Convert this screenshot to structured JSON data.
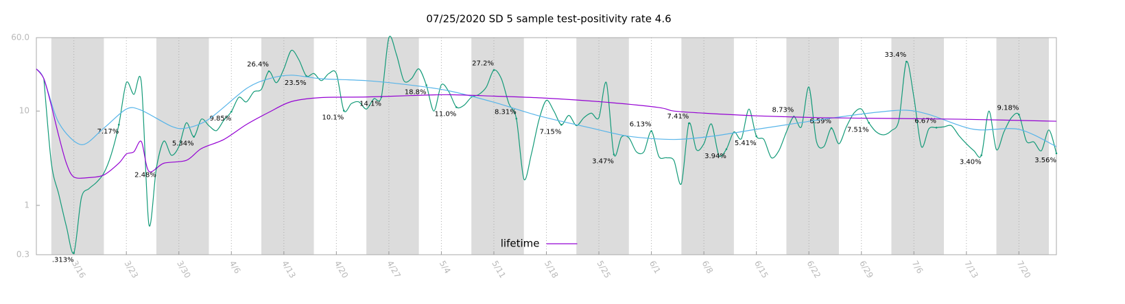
{
  "chart_data": {
    "type": "line",
    "title": "07/25/2020 SD 5 sample test-positivity rate 4.6",
    "log_y": true,
    "grid": "x",
    "legend": "bottom",
    "xlim": [
      "3/11",
      "7/25"
    ],
    "xticks": [
      "3/16",
      "3/23",
      "3/30",
      "4/6",
      "4/13",
      "4/20",
      "4/27",
      "5/4",
      "5/11",
      "5/18",
      "5/25",
      "6/1",
      "6/8",
      "6/15",
      "6/22",
      "6/29",
      "7/6",
      "7/13",
      "7/20"
    ],
    "ylim": [
      0.3,
      60
    ],
    "yticks": [
      0.3,
      1,
      10,
      {
        "value": 60,
        "label": "60.0"
      }
    ],
    "series": [
      {
        "color": "#129a78",
        "x": [
          "3/12",
          "3/13",
          "3/14",
          "3/15",
          "3/16",
          "3/17",
          "3/18",
          "3/19",
          "3/20",
          "3/21",
          "3/22",
          "3/23",
          "3/24",
          "3/25",
          "3/26",
          "3/27",
          "3/28",
          "3/29",
          "3/30",
          "3/31",
          "4/1",
          "4/2",
          "4/3",
          "4/4",
          "4/5",
          "4/6",
          "4/7",
          "4/8",
          "4/9",
          "4/10",
          "4/11",
          "4/12",
          "4/13",
          "4/14",
          "4/15",
          "4/16",
          "4/17",
          "4/18",
          "4/19",
          "4/20",
          "4/21",
          "4/22",
          "4/23",
          "4/24",
          "4/25",
          "4/26",
          "4/27",
          "4/28",
          "4/29",
          "4/30",
          "5/1",
          "5/2",
          "5/3",
          "5/4",
          "5/5",
          "5/6",
          "5/7",
          "5/8",
          "5/9",
          "5/10",
          "5/11",
          "5/12",
          "5/13",
          "5/14",
          "5/15",
          "5/16",
          "5/17",
          "5/18",
          "5/19",
          "5/20",
          "5/21",
          "5/22",
          "5/23",
          "5/24",
          "5/25",
          "5/26",
          "5/27",
          "5/28",
          "5/29",
          "5/30",
          "5/31",
          "6/1",
          "6/2",
          "6/3",
          "6/4",
          "6/5",
          "6/6",
          "6/7",
          "6/8",
          "6/9",
          "6/10",
          "6/11",
          "6/12",
          "6/13",
          "6/14",
          "6/15",
          "6/16",
          "6/17",
          "6/18",
          "6/19",
          "6/20",
          "6/21",
          "6/22",
          "6/23",
          "6/24",
          "6/25",
          "6/26",
          "6/27",
          "6/28",
          "6/29",
          "6/30",
          "7/1",
          "7/2",
          "7/3",
          "7/4",
          "7/5",
          "7/6",
          "7/7",
          "7/8",
          "7/9",
          "7/10",
          "7/11",
          "7/12",
          "7/13",
          "7/14",
          "7/15",
          "7/16",
          "7/17",
          "7/18",
          "7/19",
          "7/20",
          "7/21",
          "7/22",
          "7/23",
          "7/24",
          "7/25"
        ],
        "values": [
          22,
          2.8,
          1.3,
          0.6,
          0.313,
          1.2,
          1.5,
          1.75,
          2.2,
          3.5,
          7.17,
          20,
          15,
          20,
          0.63,
          2.48,
          4.8,
          3.4,
          4.2,
          7.5,
          5.34,
          8.2,
          7,
          6.2,
          8,
          9.85,
          14,
          12.5,
          16,
          17,
          26.4,
          20,
          28,
          44,
          35,
          23.5,
          25,
          21,
          25,
          25,
          10.1,
          12,
          12.5,
          10.5,
          13.5,
          14.1,
          60,
          40,
          21,
          22,
          28,
          18.8,
          10,
          19,
          16,
          11,
          11.5,
          14,
          15,
          18,
          27.2,
          22,
          12,
          8.31,
          1.9,
          3.5,
          8,
          13,
          10,
          7.15,
          9,
          7,
          8.5,
          9.5,
          8.5,
          20,
          3.47,
          5.3,
          5.2,
          3.7,
          3.7,
          6.13,
          3.3,
          3.2,
          3,
          1.7,
          7.41,
          3.9,
          4.5,
          7.3,
          3.4,
          3.94,
          6,
          5.1,
          10.5,
          5.41,
          5,
          3.2,
          3.8,
          6,
          8.73,
          6.8,
          18,
          4.8,
          4.2,
          6.59,
          4.5,
          6.8,
          9.5,
          10.5,
          7.51,
          6,
          5.6,
          6.2,
          8,
          33.4,
          14,
          4.2,
          6.5,
          6.67,
          6.8,
          7,
          5.5,
          4.5,
          3.8,
          3.4,
          10,
          3.9,
          6,
          8.5,
          9.18,
          4.8,
          4.7,
          3.8,
          6.3,
          3.56
        ],
        "value_labels": [
          null,
          null,
          null,
          null,
          ".313%",
          null,
          null,
          null,
          null,
          null,
          "7.17%",
          null,
          null,
          null,
          null,
          "2.48%",
          null,
          null,
          null,
          null,
          "5.34%",
          null,
          null,
          null,
          null,
          "9.85%",
          null,
          null,
          null,
          null,
          "26.4%",
          null,
          null,
          null,
          null,
          "23.5%",
          null,
          null,
          null,
          null,
          "10.1%",
          null,
          null,
          null,
          null,
          "14.1%",
          null,
          null,
          null,
          null,
          null,
          "18.8%",
          null,
          null,
          null,
          "11.0%",
          null,
          null,
          null,
          null,
          "27.2%",
          null,
          null,
          "8.31%",
          null,
          null,
          null,
          null,
          null,
          "7.15%",
          null,
          null,
          null,
          null,
          null,
          null,
          "3.47%",
          null,
          null,
          null,
          null,
          "6.13%",
          null,
          null,
          null,
          null,
          "7.41%",
          null,
          null,
          null,
          null,
          "3.94%",
          null,
          null,
          null,
          "5.41%",
          null,
          null,
          null,
          null,
          "8.73%",
          null,
          null,
          null,
          null,
          "6.59%",
          null,
          null,
          null,
          null,
          "7.51%",
          null,
          null,
          null,
          null,
          "33.4%",
          null,
          null,
          null,
          "6.67%",
          null,
          null,
          null,
          null,
          null,
          "3.40%",
          null,
          null,
          null,
          null,
          "9.18%",
          null,
          null,
          null,
          null,
          "3.56%"
        ]
      },
      {
        "color": "#56b4e9",
        "x": [
          "3/11",
          "3/12",
          "3/14",
          "3/17",
          "3/20",
          "3/23",
          "3/25",
          "3/29",
          "3/31",
          "4/3",
          "4/8",
          "4/11",
          "4/14",
          "4/18",
          "4/24",
          "4/30",
          "5/5",
          "5/11",
          "5/17",
          "5/24",
          "5/29",
          "6/4",
          "6/9",
          "6/15",
          "6/24",
          "7/1",
          "7/5",
          "7/8",
          "7/14",
          "7/20",
          "7/25"
        ],
        "values": [
          28,
          22,
          7.5,
          4.4,
          6.6,
          10.5,
          10.2,
          6.9,
          6.6,
          8.2,
          17.3,
          22,
          24,
          22,
          21,
          18.8,
          16.4,
          12.4,
          8.9,
          6.6,
          5.4,
          5,
          5.4,
          6.4,
          8.2,
          9.7,
          10.2,
          9.2,
          6.4,
          6.4,
          4.2
        ]
      },
      {
        "name": "lifetime",
        "color": "#9400d3",
        "x": [
          "3/11",
          "3/12",
          "3/13",
          "3/14",
          "3/15",
          "3/16",
          "3/18",
          "3/20",
          "3/22",
          "3/23",
          "3/24",
          "3/25",
          "3/26",
          "3/28",
          "3/31",
          "4/2",
          "4/5",
          "4/8",
          "4/11",
          "4/14",
          "4/18",
          "4/24",
          "4/30",
          "5/5",
          "5/11",
          "5/18",
          "5/26",
          "6/2",
          "6/4",
          "6/8",
          "6/15",
          "6/24",
          "7/3",
          "7/12",
          "7/25"
        ],
        "values": [
          28,
          22,
          11.4,
          5.4,
          2.8,
          2,
          1.97,
          2.1,
          2.8,
          3.5,
          3.7,
          4.75,
          2.3,
          2.8,
          3,
          4,
          5,
          7.2,
          9.7,
          12.6,
          13.9,
          14.1,
          14.6,
          14.9,
          14.4,
          13.7,
          12.4,
          10.9,
          10,
          9.5,
          8.9,
          8.5,
          8.35,
          8.2,
          7.8
        ]
      }
    ]
  }
}
